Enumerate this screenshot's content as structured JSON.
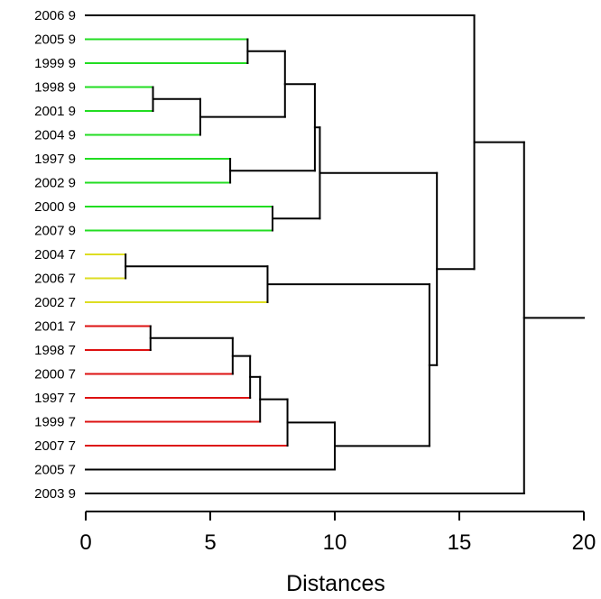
{
  "chart_data": {
    "type": "dendrogram",
    "orientation": "horizontal",
    "xlabel": "Distances",
    "xlim": [
      0,
      20
    ],
    "x_ticks": [
      0,
      5,
      10,
      15,
      20
    ],
    "leaves": [
      {
        "label": "2006 9",
        "color": "#000000"
      },
      {
        "label": "2005 9",
        "color": "#22dd22"
      },
      {
        "label": "1999 9",
        "color": "#22dd22"
      },
      {
        "label": "1998 9",
        "color": "#22dd22"
      },
      {
        "label": "2001 9",
        "color": "#22dd22"
      },
      {
        "label": "2004 9",
        "color": "#22dd22"
      },
      {
        "label": "1997 9",
        "color": "#22dd22"
      },
      {
        "label": "2002 9",
        "color": "#22dd22"
      },
      {
        "label": "2000 9",
        "color": "#22dd22"
      },
      {
        "label": "2007 9",
        "color": "#22dd22"
      },
      {
        "label": "2004 7",
        "color": "#dddd22"
      },
      {
        "label": "2006 7",
        "color": "#dddd22"
      },
      {
        "label": "2002 7",
        "color": "#dddd22"
      },
      {
        "label": "2001 7",
        "color": "#dd1111"
      },
      {
        "label": "1998 7",
        "color": "#dd1111"
      },
      {
        "label": "2000 7",
        "color": "#dd1111"
      },
      {
        "label": "1997 7",
        "color": "#dd1111"
      },
      {
        "label": "1999 7",
        "color": "#dd1111"
      },
      {
        "label": "2007 7",
        "color": "#dd1111"
      },
      {
        "label": "2005 7",
        "color": "#000000"
      },
      {
        "label": "2003 9",
        "color": "#000000"
      }
    ],
    "merges": [
      {
        "id": "m1",
        "a": "L1",
        "b": "L2",
        "height": 6.5
      },
      {
        "id": "m2",
        "a": "L3",
        "b": "L4",
        "height": 2.7
      },
      {
        "id": "m3",
        "a": "m2",
        "b": "L5",
        "height": 4.6
      },
      {
        "id": "m4",
        "a": "m1",
        "b": "m3",
        "height": 8.0
      },
      {
        "id": "m5",
        "a": "L6",
        "b": "L7",
        "height": 5.8
      },
      {
        "id": "m6",
        "a": "m4",
        "b": "m5",
        "height": 9.2
      },
      {
        "id": "m7",
        "a": "L8",
        "b": "L9",
        "height": 7.5
      },
      {
        "id": "m8",
        "a": "m6",
        "b": "m7",
        "height": 9.4
      },
      {
        "id": "m9",
        "a": "L10",
        "b": "L11",
        "height": 1.6
      },
      {
        "id": "m10",
        "a": "m9",
        "b": "L12",
        "height": 7.3
      },
      {
        "id": "m11",
        "a": "L13",
        "b": "L14",
        "height": 2.6
      },
      {
        "id": "m12",
        "a": "m11",
        "b": "L15",
        "height": 5.9
      },
      {
        "id": "m13",
        "a": "m12",
        "b": "L16",
        "height": 6.6
      },
      {
        "id": "m14",
        "a": "m13",
        "b": "L17",
        "height": 7.0
      },
      {
        "id": "m15",
        "a": "m14",
        "b": "L18",
        "height": 8.1
      },
      {
        "id": "m16",
        "a": "m15",
        "b": "L19",
        "height": 10.0
      },
      {
        "id": "m17",
        "a": "m10",
        "b": "m16",
        "height": 13.8
      },
      {
        "id": "m18",
        "a": "m8",
        "b": "m17",
        "height": 14.1
      },
      {
        "id": "m19",
        "a": "L0",
        "b": "m18",
        "height": 15.6
      },
      {
        "id": "m20",
        "a": "m19",
        "b": "L20",
        "height": 17.6
      }
    ],
    "root_extension_to": 20
  }
}
